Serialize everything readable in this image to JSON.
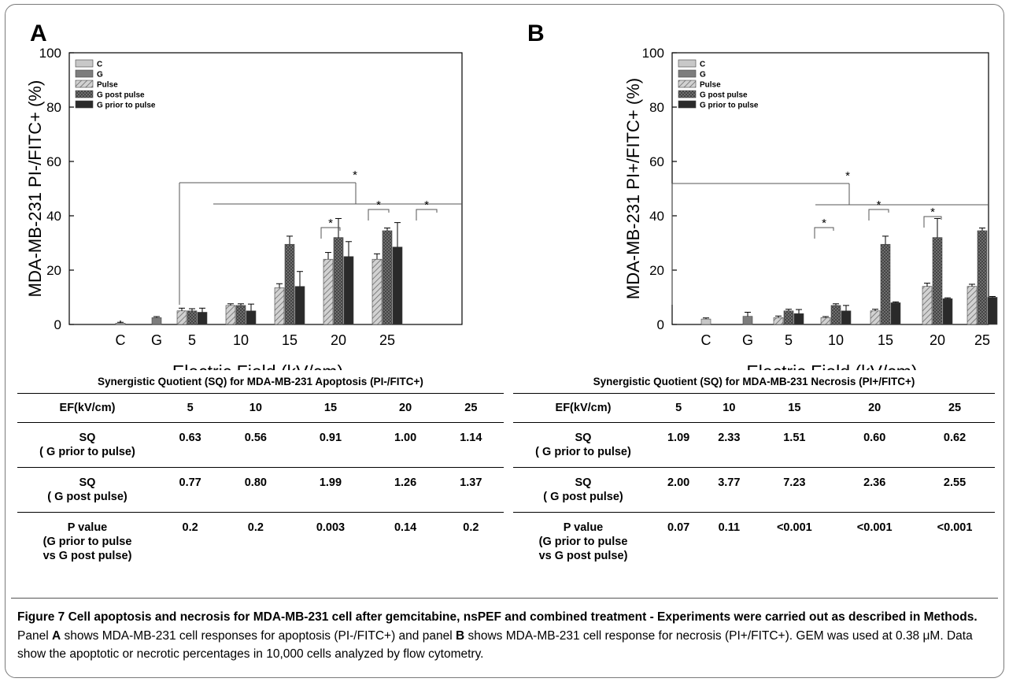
{
  "panels": [
    {
      "letter": "A",
      "chart_data": {
        "type": "bar",
        "title": "",
        "xlabel": "Electric Field (kV/cm)",
        "ylabel": "MDA-MB-231 PI-/FITC+ (%)",
        "ylim": [
          0,
          100
        ],
        "yticks": [
          0,
          20,
          40,
          60,
          80,
          100
        ],
        "categories": [
          "C",
          "G",
          "5",
          "10",
          "15",
          "20",
          "25"
        ],
        "legend": "top-left",
        "series": [
          {
            "name": "C",
            "color": "#c8c8c8",
            "pattern": "solid",
            "values": [
              0.5,
              null,
              null,
              null,
              null,
              null,
              null
            ],
            "errors": [
              0.3,
              null,
              null,
              null,
              null,
              null,
              null
            ]
          },
          {
            "name": "G",
            "color": "#7d7d7d",
            "pattern": "solid",
            "values": [
              null,
              2.5,
              null,
              null,
              null,
              null,
              null
            ],
            "errors": [
              null,
              0.4,
              null,
              null,
              null,
              null,
              null
            ]
          },
          {
            "name": "Pulse",
            "color": "#bdbdbd",
            "pattern": "hatch",
            "values": [
              null,
              null,
              5,
              7,
              13.5,
              24,
              24
            ],
            "errors": [
              null,
              null,
              1,
              0.6,
              1.5,
              2.5,
              2
            ]
          },
          {
            "name": "G post pulse",
            "color": "#6a6a6a",
            "pattern": "crosshatch",
            "values": [
              null,
              null,
              5,
              7,
              29.5,
              32,
              34.5
            ],
            "errors": [
              null,
              null,
              0.8,
              0.6,
              3,
              7,
              1
            ]
          },
          {
            "name": "G prior to pulse",
            "color": "#2a2a2a",
            "pattern": "solid",
            "values": [
              null,
              null,
              4.5,
              5,
              14,
              25,
              28.5
            ],
            "errors": [
              null,
              null,
              1.5,
              2.5,
              5.5,
              5.5,
              9
            ]
          }
        ],
        "annotations": [
          "*",
          "*",
          "*",
          "*"
        ]
      },
      "table": {
        "title": "Synergistic Quotient (SQ) for MDA-MB-231  Apoptosis (PI-/FITC+)",
        "header": [
          "EF(kV/cm)",
          "5",
          "10",
          "15",
          "20",
          "25"
        ],
        "rows": [
          {
            "label1": "SQ",
            "label2": "( G prior to pulse)",
            "label3": "",
            "values": [
              "0.63",
              "0.56",
              "0.91",
              "1.00",
              "1.14"
            ]
          },
          {
            "label1": "SQ",
            "label2": "( G post pulse)",
            "label3": "",
            "values": [
              "0.77",
              "0.80",
              "1.99",
              "1.26",
              "1.37"
            ]
          },
          {
            "label1": "P value",
            "label2": "(G prior to pulse",
            "label3": "vs G post pulse)",
            "values": [
              "0.2",
              "0.2",
              "0.003",
              "0.14",
              "0.2"
            ]
          }
        ]
      }
    },
    {
      "letter": "B",
      "chart_data": {
        "type": "bar",
        "title": "",
        "xlabel": "Electric Field (kV/cm)",
        "ylabel": "MDA-MB-231 PI+/FITC+ (%)",
        "ylim": [
          0,
          100
        ],
        "yticks": [
          0,
          20,
          40,
          60,
          80,
          100
        ],
        "categories": [
          "C",
          "G",
          "5",
          "10",
          "15",
          "20",
          "25"
        ],
        "legend": "top-left",
        "series": [
          {
            "name": "C",
            "color": "#c8c8c8",
            "pattern": "solid",
            "values": [
              2,
              null,
              null,
              null,
              null,
              null,
              null
            ],
            "errors": [
              0.4,
              null,
              null,
              null,
              null,
              null,
              null
            ]
          },
          {
            "name": "G",
            "color": "#7d7d7d",
            "pattern": "solid",
            "values": [
              null,
              3,
              null,
              null,
              null,
              null,
              null
            ],
            "errors": [
              null,
              1.5,
              null,
              null,
              null,
              null,
              null
            ]
          },
          {
            "name": "Pulse",
            "color": "#bdbdbd",
            "pattern": "hatch",
            "values": [
              null,
              null,
              2.5,
              2.5,
              5,
              14,
              14
            ],
            "errors": [
              null,
              null,
              0.6,
              0.4,
              0.6,
              1.2,
              0.8
            ]
          },
          {
            "name": "G post pulse",
            "color": "#6a6a6a",
            "pattern": "crosshatch",
            "values": [
              null,
              null,
              5,
              7,
              29.5,
              32,
              34.5
            ],
            "errors": [
              null,
              null,
              0.6,
              0.6,
              3,
              7,
              1
            ]
          },
          {
            "name": "G prior to pulse",
            "color": "#2a2a2a",
            "pattern": "solid",
            "values": [
              null,
              null,
              4,
              5,
              8,
              9.5,
              10
            ],
            "errors": [
              null,
              null,
              1.5,
              2,
              0.3,
              0.3,
              0.3
            ]
          }
        ],
        "annotations": [
          "*",
          "*",
          "*",
          "*"
        ]
      },
      "table": {
        "title": "Synergistic Quotient (SQ) for MDA-MB-231 Necrosis (PI+/FITC+)",
        "header": [
          "EF(kV/cm)",
          "5",
          "10",
          "15",
          "20",
          "25"
        ],
        "rows": [
          {
            "label1": "SQ",
            "label2": "( G prior to pulse)",
            "label3": "",
            "values": [
              "1.09",
              "2.33",
              "1.51",
              "0.60",
              "0.62"
            ]
          },
          {
            "label1": "SQ",
            "label2": "( G post pulse)",
            "label3": "",
            "values": [
              "2.00",
              "3.77",
              "7.23",
              "2.36",
              "2.55"
            ]
          },
          {
            "label1": "P value",
            "label2": "(G prior to pulse",
            "label3": "vs G post pulse)",
            "values": [
              "0.07",
              "0.11",
              "<0.001",
              "<0.001",
              "<0.001"
            ]
          }
        ]
      }
    }
  ],
  "caption": {
    "figure_label": "Figure 7",
    "title_bold": " Cell apoptosis and necrosis for MDA-MB-231 cell after gemcitabine, nsPEF and combined treatment - Experiments were carried out as described in Methods.",
    "text_1": " Panel ",
    "panel_a": "A",
    "text_2": " shows MDA-MB-231 cell responses for apoptosis (PI-/FITC+) and panel ",
    "panel_b": "B",
    "text_3": " shows MDA-MB-231 cell response for necrosis (PI+/FITC+). GEM was used at 0.38 μM. Data show the apoptotic or necrotic percentages in 10,000 cells analyzed by flow cytometry."
  }
}
